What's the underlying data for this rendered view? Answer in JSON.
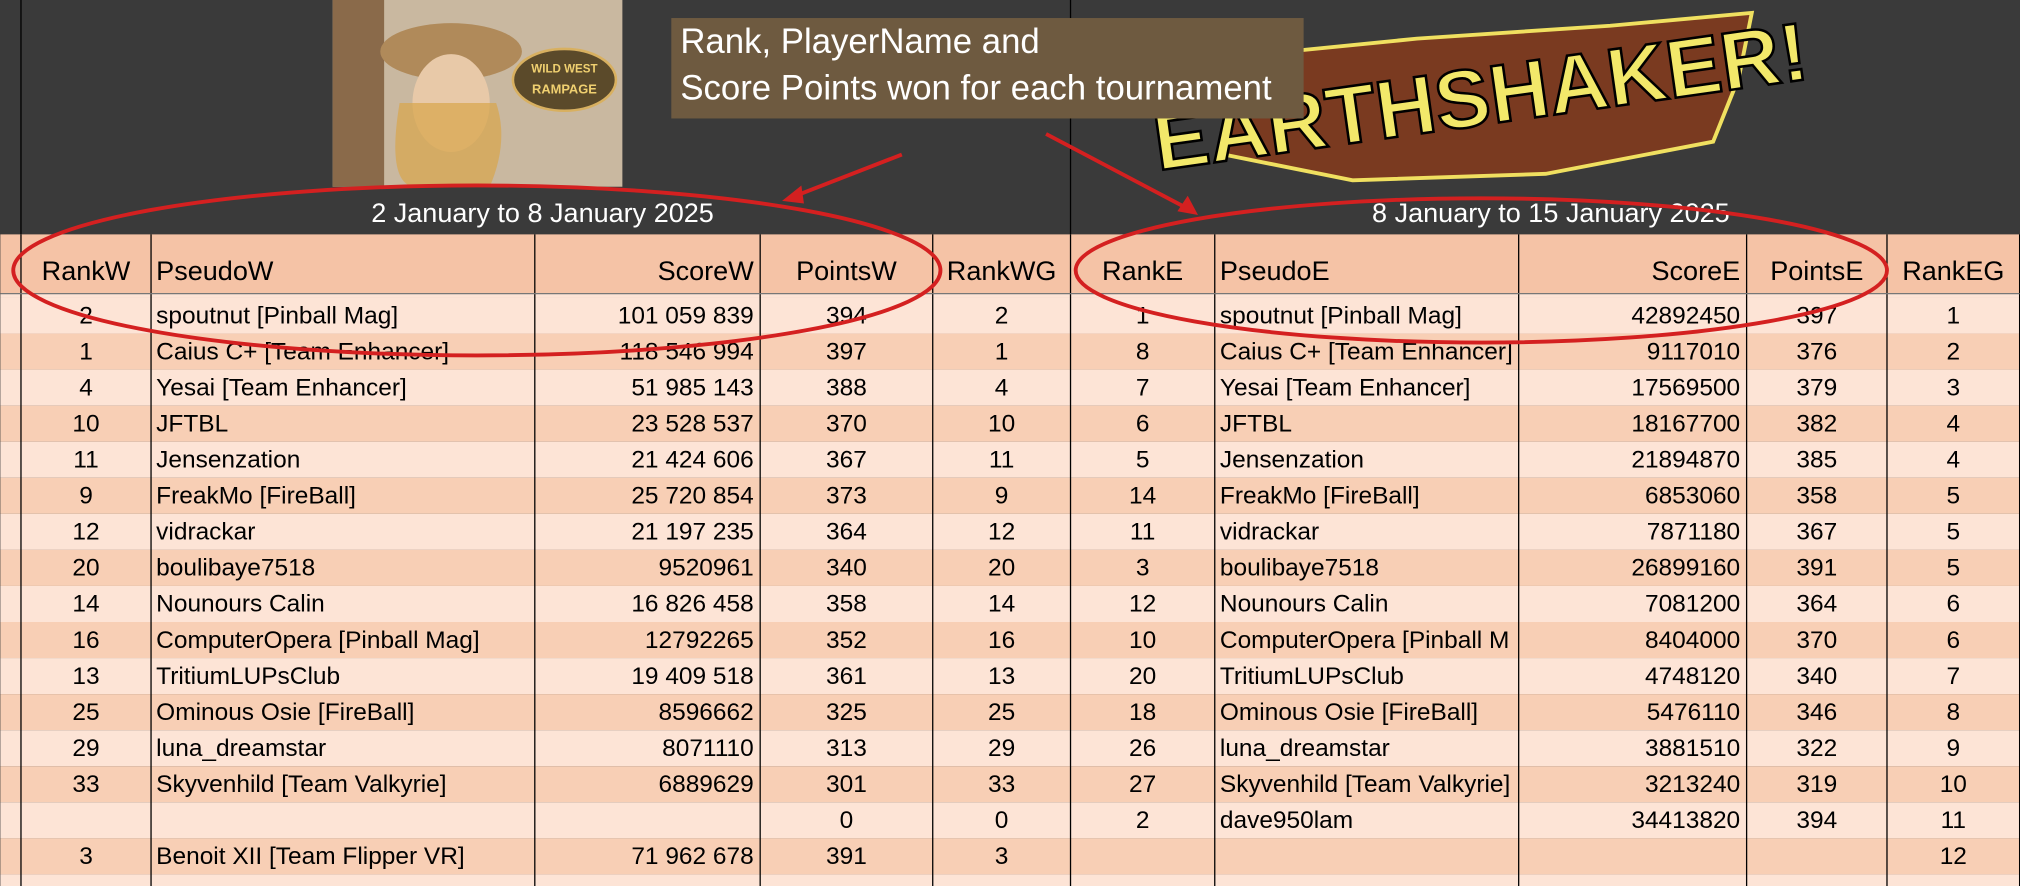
{
  "header": {
    "left_logo": [
      "WILD WEST",
      "RAMPAGE"
    ],
    "right_logo": "EARTHSHAKER!",
    "left_period": "2 January to 8 January 2025",
    "right_period": "8 January to 15 January 2025"
  },
  "annotation": {
    "lines": [
      "Rank, PlayerName and",
      "Score Points won for each tournament"
    ]
  },
  "table": {
    "columns": [
      "RankW",
      "PseudoW",
      "ScoreW",
      "PointsW",
      "RankWG",
      "RankE",
      "PseudoE",
      "ScoreE",
      "PointsE",
      "RankEG"
    ],
    "rows": [
      [
        "2",
        "spoutnut [Pinball Mag]",
        "101 059 839",
        "394",
        "2",
        "1",
        "spoutnut [Pinball Mag]",
        "42892450",
        "397",
        "1"
      ],
      [
        "1",
        "Caius C+ [Team Enhancer]",
        "118 546 994",
        "397",
        "1",
        "8",
        "Caius C+ [Team Enhancer]",
        "9117010",
        "376",
        "2"
      ],
      [
        "4",
        "Yesai [Team Enhancer]",
        "51 985 143",
        "388",
        "4",
        "7",
        "Yesai [Team Enhancer]",
        "17569500",
        "379",
        "3"
      ],
      [
        "10",
        "JFTBL",
        "23 528 537",
        "370",
        "10",
        "6",
        "JFTBL",
        "18167700",
        "382",
        "4"
      ],
      [
        "11",
        "Jensenzation",
        "21 424 606",
        "367",
        "11",
        "5",
        "Jensenzation",
        "21894870",
        "385",
        "4"
      ],
      [
        "9",
        "FreakMo [FireBall]",
        "25 720 854",
        "373",
        "9",
        "14",
        "FreakMo [FireBall]",
        "6853060",
        "358",
        "5"
      ],
      [
        "12",
        "vidrackar",
        "21 197 235",
        "364",
        "12",
        "11",
        "vidrackar",
        "7871180",
        "367",
        "5"
      ],
      [
        "20",
        "boulibaye7518",
        "9520961",
        "340",
        "20",
        "3",
        "boulibaye7518",
        "26899160",
        "391",
        "5"
      ],
      [
        "14",
        "Nounours Calin",
        "16 826 458",
        "358",
        "14",
        "12",
        "Nounours Calin",
        "7081200",
        "364",
        "6"
      ],
      [
        "16",
        "ComputerOpera [Pinball Mag]",
        "12792265",
        "352",
        "16",
        "10",
        "ComputerOpera [Pinball M",
        "8404000",
        "370",
        "6"
      ],
      [
        "13",
        "TritiumLUPsClub",
        "19 409 518",
        "361",
        "13",
        "20",
        "TritiumLUPsClub",
        "4748120",
        "340",
        "7"
      ],
      [
        "25",
        "Ominous Osie [FireBall]",
        "8596662",
        "325",
        "25",
        "18",
        "Ominous Osie [FireBall]",
        "5476110",
        "346",
        "8"
      ],
      [
        "29",
        "luna_dreamstar",
        "8071110",
        "313",
        "29",
        "26",
        "luna_dreamstar",
        "3881510",
        "322",
        "9"
      ],
      [
        "33",
        "Skyvenhild [Team Valkyrie]",
        "6889629",
        "301",
        "33",
        "27",
        "Skyvenhild [Team Valkyrie]",
        "3213240",
        "319",
        "10"
      ],
      [
        null,
        null,
        null,
        "0",
        "0",
        "2",
        "dave950lam",
        "34413820",
        "394",
        "11"
      ],
      [
        "3",
        "Benoit XII [Team Flipper VR]",
        "71 962 678",
        "391",
        "3",
        null,
        null,
        null,
        null,
        "12"
      ]
    ]
  }
}
